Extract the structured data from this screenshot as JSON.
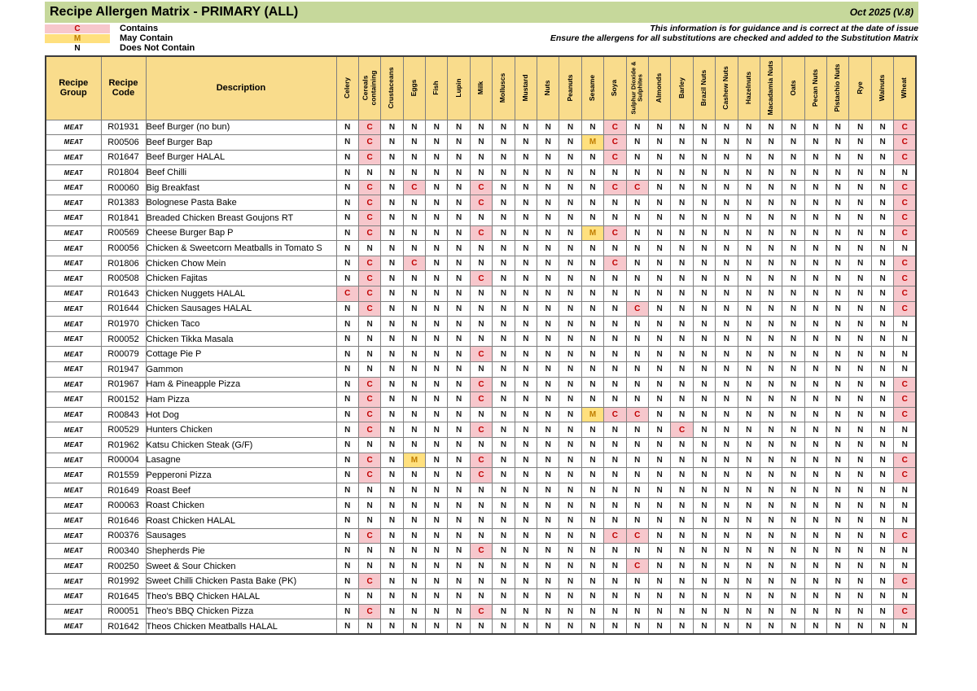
{
  "header": {
    "title": "Recipe Allergen Matrix - PRIMARY (ALL)",
    "version": "Oct 2025 (V.8)",
    "note_line1": "This information is for guidance and is correct at the date of issue",
    "note_line2": "Ensure the allergens for all substitutions are checked and added to the Substitution Matrix"
  },
  "legend": [
    {
      "code": "C",
      "label": "Contains"
    },
    {
      "code": "M",
      "label": "May Contain"
    },
    {
      "code": "N",
      "label": "Does Not Contain"
    }
  ],
  "colors": {
    "title_bg": "#C6D89B",
    "header_bg": "#F9DC8C",
    "contains_bg": "#F7C7CC",
    "contains_fg": "#C00000",
    "may_bg": "#FFE07E",
    "may_fg": "#C07D00"
  },
  "table": {
    "fixed_headers": [
      "Recipe Group",
      "Recipe Code",
      "Description"
    ],
    "allergen_headers": [
      "Celery",
      "Cereals containing",
      "Crustaceans",
      "Eggs",
      "Fish",
      "Lupin",
      "Milk",
      "Molluscs",
      "Mustard",
      "Nuts",
      "Peanuts",
      "Sesame",
      "Soya",
      "Sulphur Dioxide & Sulphites",
      "Almonds",
      "Barley",
      "Brazil Nuts",
      "Cashew Nuts",
      "Hazelnuts",
      "Macadamia Nuts",
      "Oats",
      "Pecan Nuts",
      "Pistachio Nuts",
      "Rye",
      "Walnuts",
      "Wheat"
    ],
    "value_codes": {
      "C": "Contains",
      "M": "May Contain",
      "N": "Does Not Contain"
    },
    "rows": [
      {
        "group": "MEAT",
        "code": "R01931",
        "description": "Beef Burger (no bun)",
        "values": "NCNNNNNNNNNNCNNNNNNNNNNNNC"
      },
      {
        "group": "MEAT",
        "code": "R00506",
        "description": "Beef Burger Bap",
        "values": "NCNNNNNNNNNMCNNNNNNNNNNNNC"
      },
      {
        "group": "MEAT",
        "code": "R01647",
        "description": "Beef Burger HALAL",
        "values": "NCNNNNNNNNNNCNNNNNNNNNNNNC"
      },
      {
        "group": "MEAT",
        "code": "R01804",
        "description": "Beef Chilli",
        "values": "NNNNNNNNNNNNNNNNNNNNNNNNNN"
      },
      {
        "group": "MEAT",
        "code": "R00060",
        "description": "Big Breakfast",
        "values": "NCNCNNCNNNNNCCNNNNNNNNNNNC"
      },
      {
        "group": "MEAT",
        "code": "R01383",
        "description": "Bolognese Pasta Bake",
        "values": "NCNNNNCNNNNNNNNNNNNNNNNNNC"
      },
      {
        "group": "MEAT",
        "code": "R01841",
        "description": "Breaded Chicken Breast Goujons RT",
        "values": "NCNNNNNNNNNNNNNNNNNNNNNNNC"
      },
      {
        "group": "MEAT",
        "code": "R00569",
        "description": "Cheese Burger Bap P",
        "values": "NCNNNNCNNNNMCNNNNNNNNNNNNC"
      },
      {
        "group": "MEAT",
        "code": "R00056",
        "description": "Chicken & Sweetcorn Meatballs in Tomato S",
        "values": "NNNNNNNNNNNNNNNNNNNNNNNNNN"
      },
      {
        "group": "MEAT",
        "code": "R01806",
        "description": "Chicken Chow Mein",
        "values": "NCNCNNNNNNNNCNNNNNNNNNNNNC"
      },
      {
        "group": "MEAT",
        "code": "R00508",
        "description": "Chicken Fajitas",
        "values": "NCNNNNCNNNNNNNNNNNNNNNNNNC"
      },
      {
        "group": "MEAT",
        "code": "R01643",
        "description": "Chicken Nuggets HALAL",
        "values": "CCNNNNNNNNNNNNNNNNNNNNNNNC"
      },
      {
        "group": "MEAT",
        "code": "R01644",
        "description": "Chicken Sausages HALAL",
        "values": "NCNNNNNNNNNNNCNNNNNNNNNNNC"
      },
      {
        "group": "MEAT",
        "code": "R01970",
        "description": "Chicken Taco",
        "values": "NNNNNNNNNNNNNNNNNNNNNNNNNN"
      },
      {
        "group": "MEAT",
        "code": "R00052",
        "description": "Chicken Tikka Masala",
        "values": "NNNNNNNNNNNNNNNNNNNNNNNNNN"
      },
      {
        "group": "MEAT",
        "code": "R00079",
        "description": "Cottage Pie P",
        "values": "NNNNNNCNNNNNNNNNNNNNNNNNNN"
      },
      {
        "group": "MEAT",
        "code": "R01947",
        "description": "Gammon",
        "values": "NNNNNNNNNNNNNNNNNNNNNNNNNN"
      },
      {
        "group": "MEAT",
        "code": "R01967",
        "description": "Ham & Pineapple Pizza",
        "values": "NCNNNNCNNNNNNNNNNNNNNNNNNC"
      },
      {
        "group": "MEAT",
        "code": "R00152",
        "description": "Ham Pizza",
        "values": "NCNNNNCNNNNNNNNNNNNNNNNNNC"
      },
      {
        "group": "MEAT",
        "code": "R00843",
        "description": "Hot Dog",
        "values": "NCNNNNNNNNNMCCNNNNNNNNNNNC"
      },
      {
        "group": "MEAT",
        "code": "R00529",
        "description": "Hunters Chicken",
        "values": "NCNNNNCNNNNNNNNCNNNNNNNNNN"
      },
      {
        "group": "MEAT",
        "code": "R01962",
        "description": "Katsu Chicken Steak (G/F)",
        "values": "NNNNNNNNNNNNNNNNNNNNNNNNNN"
      },
      {
        "group": "MEAT",
        "code": "R00004",
        "description": "Lasagne",
        "values": "NCNMNNCNNNNNNNNNNNNNNNNNNC"
      },
      {
        "group": "MEAT",
        "code": "R01559",
        "description": "Pepperoni Pizza",
        "values": "NCNNNNCNNNNNNNNNNNNNNNNNNC"
      },
      {
        "group": "MEAT",
        "code": "R01649",
        "description": "Roast Beef",
        "values": "NNNNNNNNNNNNNNNNNNNNNNNNNN"
      },
      {
        "group": "MEAT",
        "code": "R00063",
        "description": "Roast Chicken",
        "values": "NNNNNNNNNNNNNNNNNNNNNNNNNN"
      },
      {
        "group": "MEAT",
        "code": "R01646",
        "description": "Roast Chicken HALAL",
        "values": "NNNNNNNNNNNNNNNNNNNNNNNNNN"
      },
      {
        "group": "MEAT",
        "code": "R00376",
        "description": "Sausages",
        "values": "NCNNNNNNNNNNCCNNNNNNNNNNNC"
      },
      {
        "group": "MEAT",
        "code": "R00340",
        "description": "Shepherds Pie",
        "values": "NNNNNNCNNNNNNNNNNNNNNNNNNN"
      },
      {
        "group": "MEAT",
        "code": "R00250",
        "description": "Sweet & Sour Chicken",
        "values": "NNNNNNNNNNNNNCNNNNNNNNNNNN"
      },
      {
        "group": "MEAT",
        "code": "R01992",
        "description": "Sweet Chilli Chicken Pasta Bake (PK)",
        "values": "NCNNNNNNNNNNNNNNNNNNNNNNNC"
      },
      {
        "group": "MEAT",
        "code": "R01645",
        "description": "Theo's BBQ Chicken HALAL",
        "values": "NNNNNNNNNNNNNNNNNNNNNNNNNN"
      },
      {
        "group": "MEAT",
        "code": "R00051",
        "description": "Theo's BBQ Chicken Pizza",
        "values": "NCNNNNCNNNNNNNNNNNNNNNNNNC"
      },
      {
        "group": "MEAT",
        "code": "R01642",
        "description": "Theos Chicken Meatballs HALAL",
        "values": "NNNNNNNNNNNNNNNNNNNNNNNNNN"
      }
    ]
  },
  "layout": {
    "col_width_group": 68,
    "col_width_code": 55,
    "col_width_description": 234,
    "col_width_allergen": 27.4
  }
}
